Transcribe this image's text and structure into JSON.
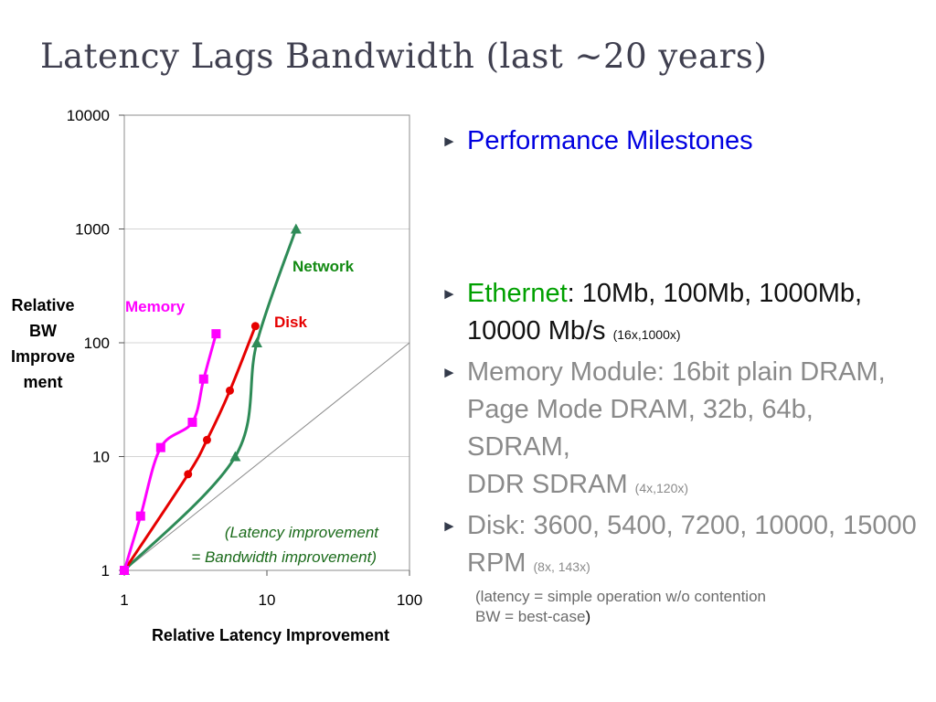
{
  "slide": {
    "title": "Latency Lags Bandwidth (last ~20 years)"
  },
  "colors": {
    "memory": "#ff00ff",
    "disk": "#e60000",
    "network": "#2e8b57",
    "network_label": "#138a13",
    "reference": "#8c8c8c",
    "heading_blue": "#0000e0",
    "ethernet_green": "#00a000",
    "gray_text": "#8a8a8a",
    "title_gray": "#3f3f4f"
  },
  "chart_data": {
    "type": "scatter",
    "title": "",
    "xlabel": "Relative Latency Improvement",
    "ylabel": "Relative BW Improvement",
    "ylabel_lines": [
      "Relative",
      "BW",
      "Improve",
      "ment"
    ],
    "x_scale": "log",
    "y_scale": "log",
    "xlim": [
      1,
      100
    ],
    "ylim": [
      1,
      10000
    ],
    "x_ticks": [
      "1",
      "10",
      "100"
    ],
    "y_ticks": [
      "1",
      "10",
      "100",
      "1000",
      "10000"
    ],
    "grid": "horizontal",
    "series": [
      {
        "name": "Memory",
        "marker": "square",
        "points": [
          [
            1,
            1
          ],
          [
            1.3,
            3
          ],
          [
            1.8,
            12
          ],
          [
            3,
            20
          ],
          [
            3.6,
            48
          ],
          [
            4.4,
            120
          ]
        ]
      },
      {
        "name": "Disk",
        "marker": "circle",
        "points": [
          [
            1,
            1
          ],
          [
            2.8,
            7
          ],
          [
            3.8,
            14
          ],
          [
            5.5,
            38
          ],
          [
            8.3,
            140
          ]
        ]
      },
      {
        "name": "Network",
        "marker": "triangle",
        "points": [
          [
            1,
            1
          ],
          [
            6,
            10
          ],
          [
            8.5,
            100
          ],
          [
            16,
            1000
          ]
        ]
      }
    ],
    "reference_line": {
      "points": [
        [
          1,
          1
        ],
        [
          100,
          100
        ]
      ]
    },
    "annotation": [
      "(Latency improvement",
      "= Bandwidth improvement)"
    ]
  },
  "bullets": {
    "heading": "Performance Milestones",
    "ethernet_label": "Ethernet",
    "ethernet_text": ": 10Mb, 100Mb, 1000Mb, 10000 Mb/s ",
    "ethernet_ratio": "(16x,1000x)",
    "memory_text": "Memory Module: 16bit plain DRAM, Page Mode DRAM, 32b, 64b, SDRAM,",
    "memory_text2": "DDR SDRAM ",
    "memory_ratio": "(4x,120x)",
    "disk_text": "Disk: 3600, 5400, 7200, 10000, 15000 RPM ",
    "disk_ratio": "(8x, 143x)",
    "note_line1": "(latency = simple operation w/o contention",
    "note_line2": "BW = best-case",
    "note_close": ")"
  }
}
